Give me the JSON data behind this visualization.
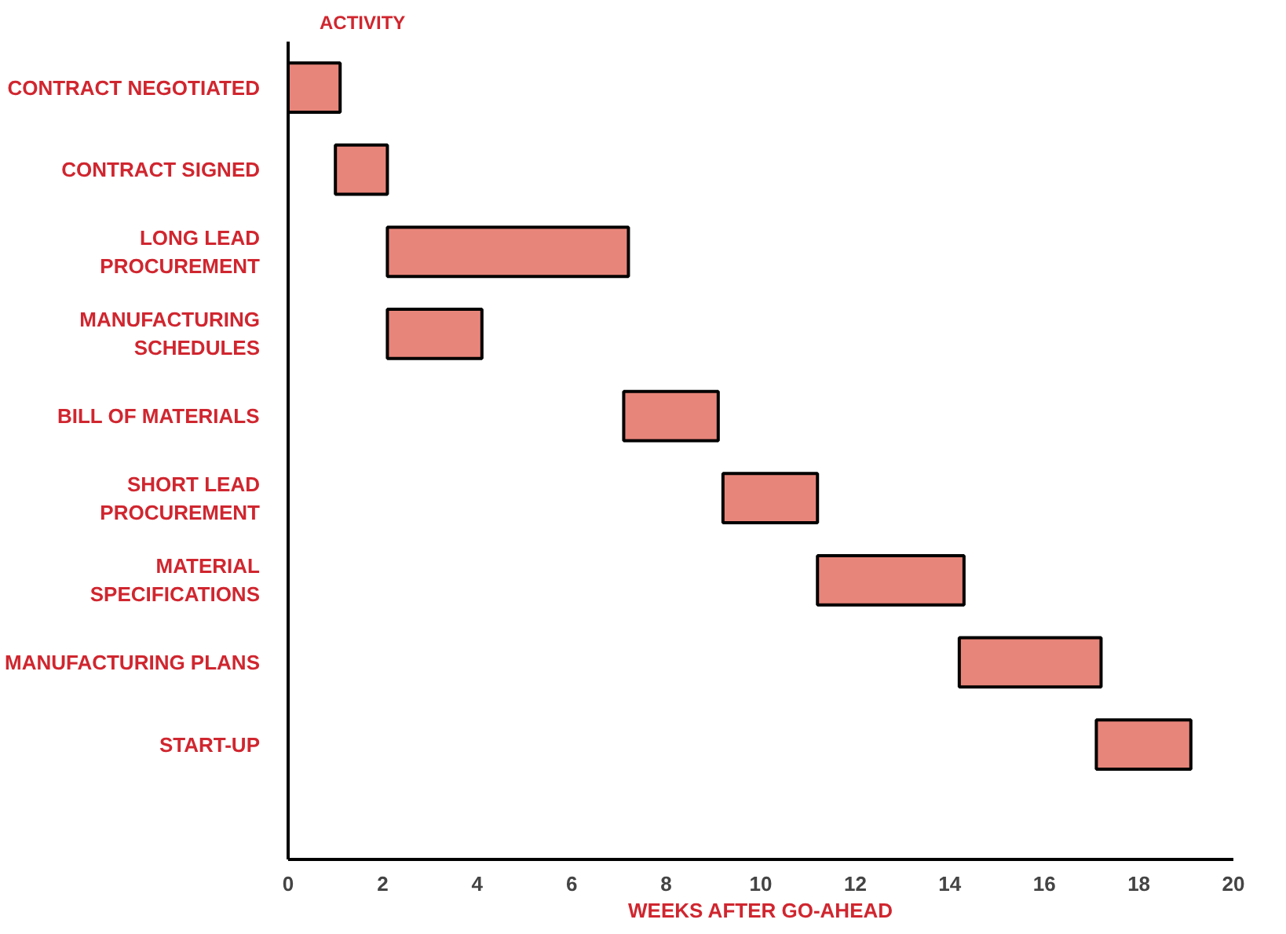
{
  "chart_data": {
    "type": "bar",
    "orientation": "horizontal",
    "ylabel": "ACTIVITY",
    "xlabel": "WEEKS AFTER GO-AHEAD",
    "categories": [
      "CONTRACT NEGOTIATED",
      "CONTRACT SIGNED",
      "LONG LEAD\nPROCUREMENT",
      "MANUFACTURING\nSCHEDULES",
      "BILL OF MATERIALS",
      "SHORT LEAD\nPROCUREMENT",
      "MATERIAL\nSPECIFICATIONS",
      "MANUFACTURING PLANS",
      "START-UP"
    ],
    "base": [
      0,
      1.0,
      2.1,
      2.1,
      7.1,
      9.2,
      11.2,
      14.2,
      17.1
    ],
    "values": [
      1.1,
      1.1,
      5.1,
      2.0,
      2.0,
      2.0,
      3.1,
      3.0,
      2.0
    ],
    "color": "#e8857a",
    "xlim": [
      0,
      20
    ],
    "xticks": [
      0,
      2,
      4,
      6,
      8,
      10,
      12,
      14,
      16,
      18,
      20
    ]
  }
}
